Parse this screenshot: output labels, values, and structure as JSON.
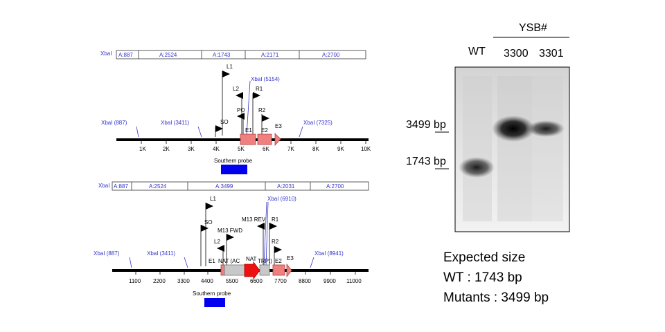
{
  "map1": {
    "frags": [
      "A:887",
      "A:2524",
      "A:1743",
      "A:2171",
      "A:2700"
    ],
    "xbal_bar": "XbaI",
    "xbal_labels": [
      "XbaI (887)",
      "XbaI (3411)",
      "XbaI (5154)",
      "XbaI (7325)"
    ],
    "ticks": [
      "1K",
      "2K",
      "3K",
      "4K",
      "5K",
      "6K",
      "7K",
      "8K",
      "9K",
      "10K"
    ],
    "primers": [
      "L1",
      "L2",
      "R1",
      "PO",
      "R2",
      "SO"
    ],
    "exons": [
      "E1",
      "E2",
      "E3"
    ],
    "probe": "Southern probe"
  },
  "map2": {
    "frags": [
      "A:887",
      "A:2524",
      "A:3499",
      "A:2031",
      "A:2700"
    ],
    "xbal_bar": "XbaI",
    "xbal_labels": [
      "XbaI (887)",
      "XbaI (3411)",
      "XbaI (6910)",
      "XbaI (8941)"
    ],
    "ticks": [
      "1100",
      "2200",
      "3300",
      "4400",
      "5500",
      "6600",
      "7700",
      "8800",
      "9900",
      "11000"
    ],
    "primers": [
      "L1",
      "SO",
      "M13 FWD",
      "M13 REV",
      "R1",
      "L2",
      "R2"
    ],
    "features": [
      "E1",
      "NAT (AC",
      "NAT",
      "TRPt)",
      "E2",
      "E3"
    ],
    "probe": "Southern probe"
  },
  "gel": {
    "group": "YSB#",
    "lanes": [
      "WT",
      "3300",
      "3301"
    ],
    "markers": [
      "3499 bp",
      "1743 bp"
    ]
  },
  "expected": {
    "title": "Expected size",
    "wt": "WT : 1743  bp",
    "mut": "Mutants : 3499 bp"
  },
  "colors": {
    "xbal_blue": "#3333cc",
    "exon_fill": "#f08080",
    "nat_red": "#ee1111",
    "probe_blue": "#0000ee"
  }
}
